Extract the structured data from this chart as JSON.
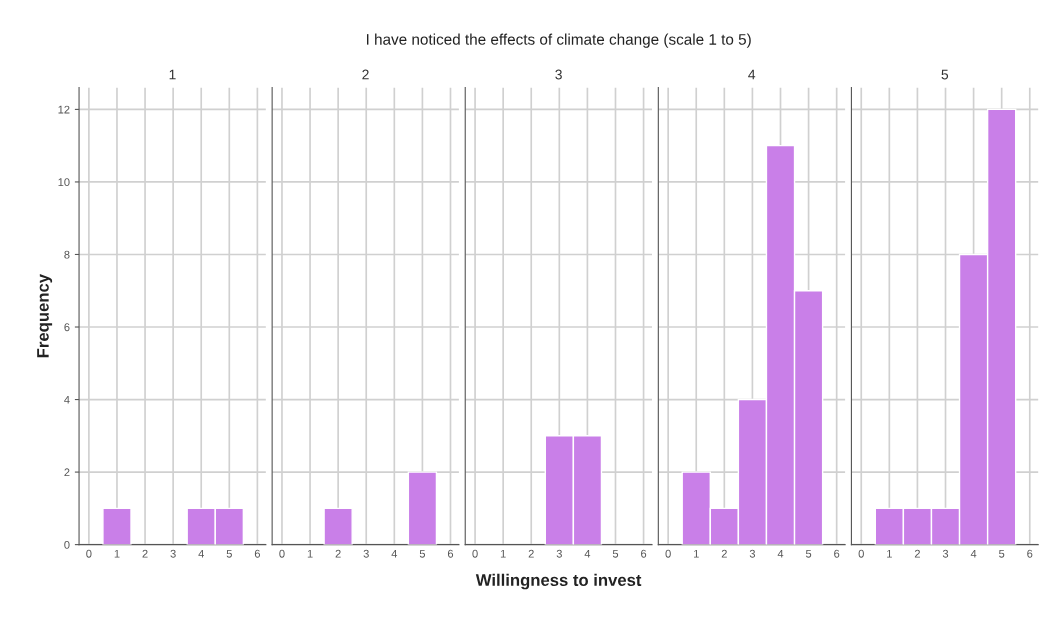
{
  "chart_data": [
    {
      "type": "histogram",
      "title": "1",
      "annotations": [
        "I have noticed the effects of climate change (scale 1 to 5)"
      ],
      "ylabel": "Frequency",
      "bins": [
        0.5,
        1.5,
        2.5,
        3.5,
        4.5,
        5.5
      ],
      "values": [
        1,
        0,
        0,
        1,
        1
      ],
      "color": "#c97fe8",
      "xlim": [
        -0.35,
        6.3
      ],
      "xticks": [
        0,
        1,
        2,
        3,
        4,
        5,
        6
      ],
      "ylim": [
        0,
        12.6
      ],
      "yticks": [
        0,
        2,
        4,
        6,
        8,
        10,
        12
      ],
      "grid": true
    },
    {
      "type": "histogram",
      "title": "2",
      "bins": [
        0.5,
        1.5,
        2.5,
        3.5,
        4.5,
        5.5
      ],
      "values": [
        0,
        1,
        0,
        0,
        2
      ],
      "color": "#c97fe8",
      "xlim": [
        -0.35,
        6.3
      ],
      "xticks": [
        0,
        1,
        2,
        3,
        4,
        5,
        6
      ],
      "ylim": [
        0,
        12.6
      ],
      "yticks": [
        0,
        2,
        4,
        6,
        8,
        10,
        12
      ],
      "grid": true,
      "tick_labels": "x"
    },
    {
      "type": "histogram",
      "title": "3",
      "xlabel": "Willingness to invest",
      "bins": [
        0.5,
        1.5,
        2.5,
        3.5,
        4.5,
        5.5
      ],
      "values": [
        0,
        0,
        3,
        3,
        0
      ],
      "color": "#c97fe8",
      "xlim": [
        -0.35,
        6.3
      ],
      "xticks": [
        0,
        1,
        2,
        3,
        4,
        5,
        6
      ],
      "ylim": [
        0,
        12.6
      ],
      "yticks": [
        0,
        2,
        4,
        6,
        8,
        10,
        12
      ],
      "grid": true,
      "tick_labels": "x"
    },
    {
      "type": "histogram",
      "title": "4",
      "bins": [
        0.5,
        1.5,
        2.5,
        3.5,
        4.5,
        5.5
      ],
      "values": [
        2,
        1,
        4,
        11,
        7
      ],
      "color": "#c97fe8",
      "xlim": [
        -0.35,
        6.3
      ],
      "xticks": [
        0,
        1,
        2,
        3,
        4,
        5,
        6
      ],
      "ylim": [
        0,
        12.6
      ],
      "yticks": [
        0,
        2,
        4,
        6,
        8,
        10,
        12
      ],
      "grid": true,
      "tick_labels": "x"
    },
    {
      "type": "histogram",
      "title": "5",
      "bins": [
        0.5,
        1.5,
        2.5,
        3.5,
        4.5,
        5.5
      ],
      "values": [
        1,
        1,
        1,
        8,
        12
      ],
      "color": "#c97fe8",
      "xlim": [
        -0.35,
        6.3
      ],
      "xticks": [
        0,
        1,
        2,
        3,
        4,
        5,
        6
      ],
      "ylim": [
        0,
        12.6
      ],
      "yticks": [
        0,
        2,
        4,
        6,
        8,
        10,
        12
      ],
      "grid": true,
      "tick_labels": "x"
    }
  ]
}
